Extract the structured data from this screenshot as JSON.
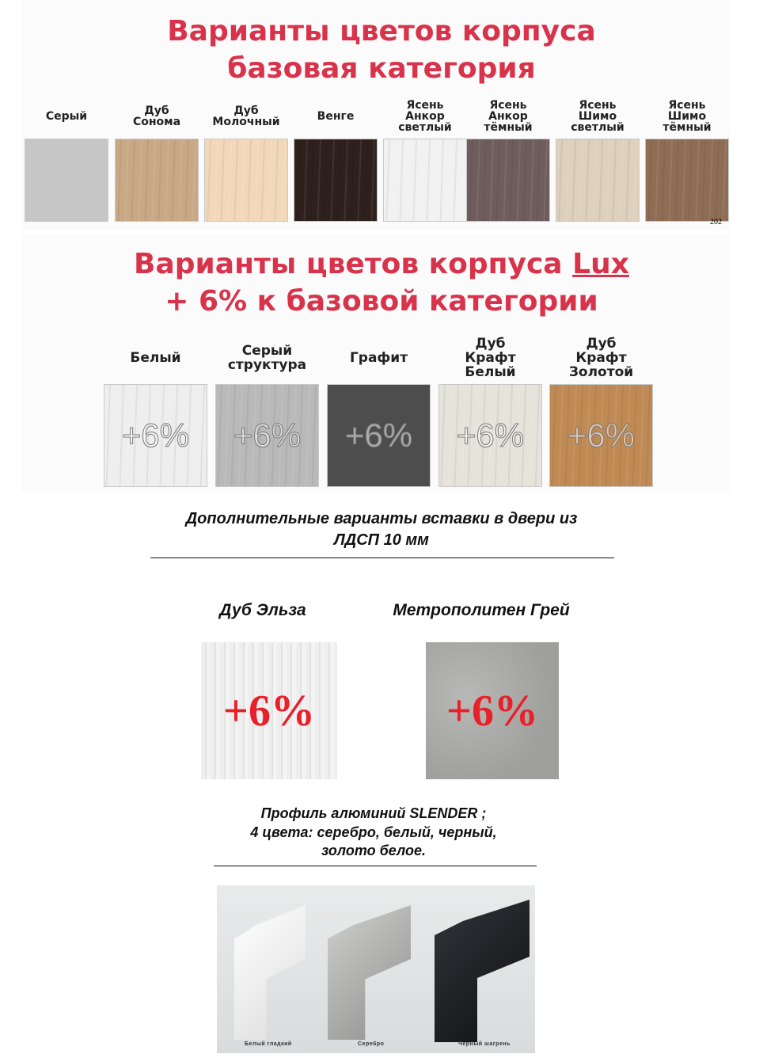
{
  "base": {
    "title_line1": "Варианты цветов корпуса",
    "title_line2": "базовая категория",
    "swatches": [
      {
        "label": "Серый",
        "color": "#c6c6c6"
      },
      {
        "label": "Дуб\nСонома",
        "color": "#c9a886"
      },
      {
        "label": "Дуб\nМолочный",
        "color": "#f2d8bb"
      },
      {
        "label": "Венге",
        "color": "#2e201c"
      },
      {
        "label": "Ясень\nАнкор\nсветлый",
        "color": "#f1f1f1"
      },
      {
        "label": "Ясень\nАнкор\nтёмный",
        "color": "#6e5d5c"
      },
      {
        "label": "Ясень\nШимо\nсветлый",
        "color": "#ddd0bc"
      },
      {
        "label": "Ясень\nШимо\nтёмный",
        "color": "#8f6d55"
      }
    ],
    "corner_mark": "202"
  },
  "lux": {
    "title_line1": "Варианты цветов корпуса ",
    "title_lux": "Lux",
    "title_line2": "+ 6% к базовой категории",
    "swatches": [
      {
        "label": "Белый",
        "color": "#eeeeee",
        "badge": "+6%"
      },
      {
        "label": "Серый\nструктура",
        "color": "#b9b9b9",
        "badge": "+6%"
      },
      {
        "label": "Графит",
        "color": "#4d4d4d",
        "badge": "+6%"
      },
      {
        "label": "Дуб\nКрафт\nБелый",
        "color": "#e6e3da",
        "badge": "+6%"
      },
      {
        "label": "Дуб\nКрафт\nЗолотой",
        "color": "#c08a55",
        "badge": "+6%"
      }
    ]
  },
  "inserts": {
    "heading_line1": "Дополнительные варианты вставки в двери из",
    "heading_line2": "ЛДСП 10 мм",
    "items": [
      {
        "label": "Дуб Эльза",
        "color": "#ececec",
        "badge": "+6%"
      },
      {
        "label": "Метрополитен Грей",
        "color": "#a9a9a7",
        "badge": "+6%"
      }
    ]
  },
  "profile": {
    "line1": "Профиль алюминий SLENDER ;",
    "line2": "4 цвета: серебро, белый, черный,",
    "line3": "золото белое.",
    "items": [
      {
        "label": "Белый гладкий",
        "color": "#f4f4f4"
      },
      {
        "label": "Серебро",
        "color": "#b5b5b3"
      },
      {
        "label": "Чёрный шагрень",
        "color": "#1d1d20"
      }
    ]
  }
}
